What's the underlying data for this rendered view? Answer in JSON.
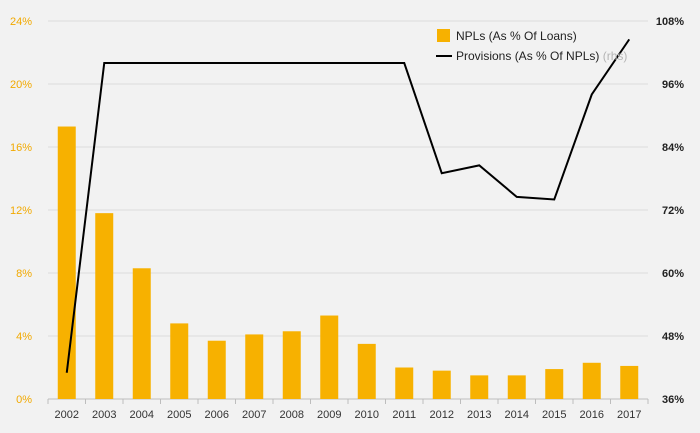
{
  "colors": {
    "bar": "#f7b100",
    "line": "#000000",
    "grid": "#dcdcdc",
    "left_axis_text": "#f2a900",
    "right_axis_text": "#222222",
    "background": "#f2f2f2"
  },
  "chart_data": {
    "type": "bar",
    "title": "",
    "xlabel": "",
    "ylabel": "",
    "grid": true,
    "legend_position": "top-right",
    "categories": [
      "2002",
      "2003",
      "2004",
      "2005",
      "2006",
      "2007",
      "2008",
      "2009",
      "2010",
      "2011",
      "2012",
      "2013",
      "2014",
      "2015",
      "2016",
      "2017"
    ],
    "series": [
      {
        "name": "NPLs (As % Of Loans)",
        "type": "bar",
        "axis": "left",
        "values": [
          17.3,
          11.8,
          8.3,
          4.8,
          3.7,
          4.1,
          4.3,
          5.3,
          3.5,
          2.0,
          1.8,
          1.5,
          1.5,
          1.9,
          2.3,
          2.1
        ]
      },
      {
        "name": "Provisions (As % Of NPLs)",
        "name_suffix": "(rhs)",
        "type": "line",
        "axis": "right",
        "values": [
          41,
          100,
          100,
          100,
          100,
          100,
          100,
          100,
          100,
          100,
          79,
          80.5,
          74.5,
          74,
          94,
          104.5
        ]
      }
    ],
    "y_left": {
      "min": 0,
      "max": 24,
      "ticks": [
        "0%",
        "4%",
        "8%",
        "12%",
        "16%",
        "20%",
        "24%"
      ]
    },
    "y_right": {
      "min": 36,
      "max": 108,
      "ticks": [
        "36%",
        "48%",
        "60%",
        "72%",
        "84%",
        "96%",
        "108%"
      ]
    }
  }
}
